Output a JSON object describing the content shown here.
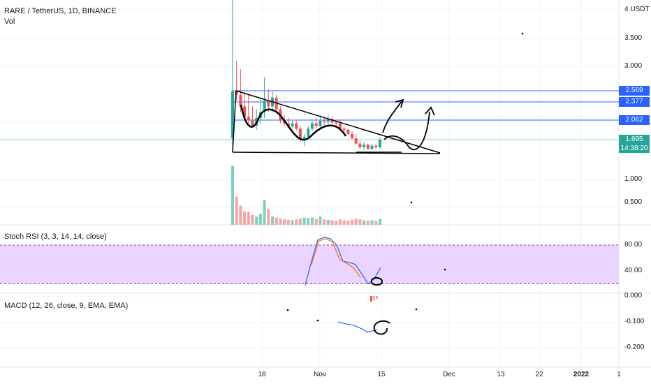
{
  "header": {
    "symbol": "RARE / TetherUS, 1D, BINANCE",
    "volume_label": "Vol"
  },
  "panes": {
    "stoch_rsi_label": "Stoch RSI (3, 3, 14, 14, close)",
    "macd_label": "MACD (12, 26, close, 9, EMA, EMA)"
  },
  "price_axis": {
    "ticks": [
      {
        "label": "4 USDT",
        "value": 4.0
      },
      {
        "label": "3.500",
        "value": 3.5
      },
      {
        "label": "3.000",
        "value": 3.0
      },
      {
        "label": "1.000",
        "value": 1.0
      },
      {
        "label": "0.500",
        "value": 0.5
      }
    ],
    "levels": [
      {
        "label": "2.569",
        "value": 2.569,
        "color": "#2962ff"
      },
      {
        "label": "2.377",
        "value": 2.377,
        "color": "#2962ff"
      },
      {
        "label": "2.062",
        "value": 2.062,
        "color": "#2962ff"
      }
    ],
    "current_price": {
      "label": "1.695",
      "countdown": "14:38:20",
      "color": "#26a69a"
    }
  },
  "stoch_axis": {
    "ticks": [
      {
        "label": "80.00",
        "value": 80
      },
      {
        "label": "40.00",
        "value": 40
      }
    ]
  },
  "macd_axis": {
    "ticks": [
      {
        "label": "0.000",
        "value": 0
      },
      {
        "label": "-0.100",
        "value": -0.1
      },
      {
        "label": "-0.200",
        "value": -0.2
      }
    ]
  },
  "time_axis": {
    "labels": [
      {
        "label": "18"
      },
      {
        "label": "Nov"
      },
      {
        "label": "15"
      },
      {
        "label": "Dec"
      },
      {
        "label": "13"
      },
      {
        "label": "22"
      },
      {
        "label": "2022",
        "bold": true
      },
      {
        "label": "1"
      }
    ]
  },
  "colors": {
    "up": "#26a69a",
    "down": "#ef5350",
    "up_vol": "#7fcfc4",
    "down_vol": "#f4a6a4",
    "level_line": "#2962ff",
    "stoch_band": "#e9d5ff",
    "stoch_k": "#2962ff",
    "stoch_d": "#ff6d00",
    "macd_line": "#2962ff",
    "macd_signal": "#ff6d00",
    "drawing": "#000000"
  },
  "chart_data": {
    "type": "candlestick",
    "symbol": "RARE / TetherUS",
    "interval": "1D",
    "exchange": "BINANCE",
    "candles": [
      {
        "o": 1.72,
        "h": 4.3,
        "l": 1.72,
        "c": 2.56
      },
      {
        "o": 2.56,
        "h": 3.1,
        "l": 2.4,
        "c": 2.5
      },
      {
        "o": 2.5,
        "h": 2.95,
        "l": 2.2,
        "c": 2.3
      },
      {
        "o": 2.3,
        "h": 2.55,
        "l": 2.05,
        "c": 2.12
      },
      {
        "o": 2.12,
        "h": 2.5,
        "l": 2.0,
        "c": 2.06
      },
      {
        "o": 2.06,
        "h": 2.3,
        "l": 1.93,
        "c": 1.96
      },
      {
        "o": 1.96,
        "h": 2.25,
        "l": 1.88,
        "c": 2.1
      },
      {
        "o": 2.1,
        "h": 2.45,
        "l": 2.0,
        "c": 2.2
      },
      {
        "o": 2.2,
        "h": 2.8,
        "l": 2.1,
        "c": 2.4
      },
      {
        "o": 2.4,
        "h": 2.6,
        "l": 2.2,
        "c": 2.3
      },
      {
        "o": 2.3,
        "h": 2.55,
        "l": 2.2,
        "c": 2.45
      },
      {
        "o": 2.45,
        "h": 2.5,
        "l": 2.2,
        "c": 2.25
      },
      {
        "o": 2.25,
        "h": 2.3,
        "l": 2.0,
        "c": 2.05
      },
      {
        "o": 2.05,
        "h": 2.15,
        "l": 1.95,
        "c": 2.0
      },
      {
        "o": 2.0,
        "h": 2.1,
        "l": 1.92,
        "c": 1.95
      },
      {
        "o": 1.95,
        "h": 2.05,
        "l": 1.9,
        "c": 2.0
      },
      {
        "o": 2.0,
        "h": 2.05,
        "l": 1.86,
        "c": 1.9
      },
      {
        "o": 1.9,
        "h": 1.95,
        "l": 1.65,
        "c": 1.7
      },
      {
        "o": 1.7,
        "h": 1.8,
        "l": 1.58,
        "c": 1.75
      },
      {
        "o": 1.75,
        "h": 1.95,
        "l": 1.72,
        "c": 1.9
      },
      {
        "o": 1.9,
        "h": 2.05,
        "l": 1.85,
        "c": 2.0
      },
      {
        "o": 2.0,
        "h": 2.1,
        "l": 1.9,
        "c": 1.95
      },
      {
        "o": 1.95,
        "h": 2.15,
        "l": 1.9,
        "c": 2.05
      },
      {
        "o": 2.05,
        "h": 2.1,
        "l": 1.95,
        "c": 2.03
      },
      {
        "o": 2.03,
        "h": 2.15,
        "l": 1.97,
        "c": 2.08
      },
      {
        "o": 2.08,
        "h": 2.12,
        "l": 1.98,
        "c": 2.02
      },
      {
        "o": 2.02,
        "h": 2.06,
        "l": 1.96,
        "c": 2.0
      },
      {
        "o": 2.0,
        "h": 2.07,
        "l": 1.85,
        "c": 1.9
      },
      {
        "o": 1.9,
        "h": 1.95,
        "l": 1.82,
        "c": 1.88
      },
      {
        "o": 1.88,
        "h": 1.9,
        "l": 1.78,
        "c": 1.8
      },
      {
        "o": 1.8,
        "h": 1.85,
        "l": 1.7,
        "c": 1.72
      },
      {
        "o": 1.72,
        "h": 1.8,
        "l": 1.6,
        "c": 1.62
      },
      {
        "o": 1.62,
        "h": 1.68,
        "l": 1.52,
        "c": 1.55
      },
      {
        "o": 1.55,
        "h": 1.65,
        "l": 1.5,
        "c": 1.6
      },
      {
        "o": 1.6,
        "h": 1.62,
        "l": 1.5,
        "c": 1.52
      },
      {
        "o": 1.52,
        "h": 1.62,
        "l": 1.5,
        "c": 1.58
      },
      {
        "o": 1.58,
        "h": 1.62,
        "l": 1.52,
        "c": 1.55
      },
      {
        "o": 1.55,
        "h": 1.74,
        "l": 1.53,
        "c": 1.695
      }
    ],
    "volume": [
      1.3,
      0.62,
      0.42,
      0.3,
      0.28,
      0.22,
      0.18,
      0.24,
      0.55,
      0.35,
      0.18,
      0.16,
      0.14,
      0.12,
      0.11,
      0.1,
      0.12,
      0.14,
      0.16,
      0.15,
      0.16,
      0.13,
      0.18,
      0.12,
      0.11,
      0.1,
      0.09,
      0.12,
      0.1,
      0.09,
      0.11,
      0.13,
      0.12,
      0.1,
      0.09,
      0.1,
      0.09,
      0.13
    ],
    "stoch_rsi": {
      "k": [
        18,
        55,
        88,
        92,
        90,
        80,
        55,
        53,
        50,
        35,
        20,
        28,
        45
      ],
      "d": [
        50,
        86,
        90,
        85,
        58,
        52,
        45,
        30
      ],
      "upper_band": 80,
      "lower_band": 20
    },
    "macd": {
      "macd_line": [
        -0.1,
        -0.105,
        -0.11,
        -0.112,
        -0.12,
        -0.128,
        -0.14,
        -0.135,
        -0.13
      ]
    }
  }
}
